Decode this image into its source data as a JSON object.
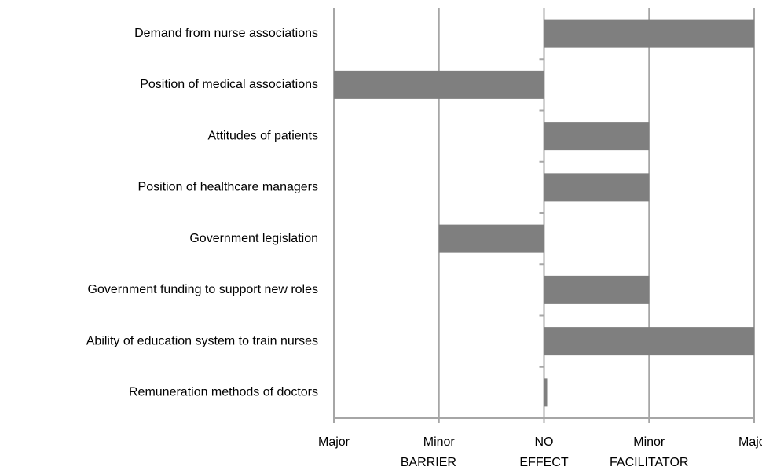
{
  "chart_data": {
    "type": "hbar",
    "categories": [
      "Demand from nurse associations",
      "Position of medical associations",
      "Attitudes of patients",
      "Position of healthcare managers",
      "Government legislation",
      "Government funding to support new roles",
      "Ability of education system to train nurses",
      "Remuneration methods of doctors"
    ],
    "values": [
      2,
      -2,
      1,
      1,
      -1,
      1,
      2,
      0.03
    ],
    "color": "#7f7f7f",
    "xlim": [
      -2,
      2
    ],
    "xticks": [
      {
        "value": -2,
        "label": "Major"
      },
      {
        "value": -1,
        "label": "Minor"
      },
      {
        "value": 0,
        "label": "NO"
      },
      {
        "value": 1,
        "label": "Minor"
      },
      {
        "value": 2,
        "label": "Major"
      }
    ],
    "x_group_labels": [
      "BARRIER",
      "EFFECT",
      "FACILITATOR"
    ],
    "grid": true
  }
}
